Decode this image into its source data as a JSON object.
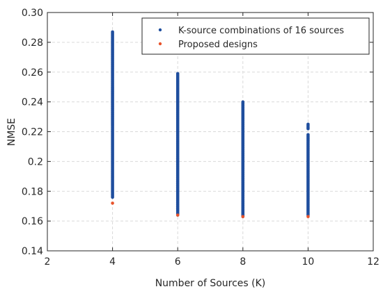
{
  "chart_data": {
    "type": "scatter",
    "title": "",
    "xlabel": "Number of Sources (K)",
    "ylabel": "NMSE",
    "xlim": [
      2,
      12
    ],
    "ylim": [
      0.14,
      0.3
    ],
    "xticks": [
      2,
      4,
      6,
      8,
      10,
      12
    ],
    "xtick_labels": [
      "2",
      "4",
      "6",
      "8",
      "10",
      "12"
    ],
    "yticks": [
      0.14,
      0.16,
      0.18,
      0.2,
      0.22,
      0.24,
      0.26,
      0.28,
      0.3
    ],
    "ytick_labels": [
      "0.14",
      "0.16",
      "0.18",
      "0.2",
      "0.22",
      "0.24",
      "0.26",
      "0.28",
      "0.30"
    ],
    "grid": true,
    "legend_position": "top-right",
    "series": [
      {
        "name": "K-source combinations of 16 sources",
        "color": "#1f4e9e",
        "marker": "dot",
        "point_ranges": [
          {
            "x": 4,
            "y_min": 0.176,
            "y_max": 0.287
          },
          {
            "x": 6,
            "y_min": 0.164,
            "y_max": 0.259
          },
          {
            "x": 8,
            "y_min": 0.163,
            "y_max": 0.24
          },
          {
            "x": 10,
            "y_min": 0.164,
            "y_max": 0.218
          },
          {
            "x": 10,
            "y_min": 0.222,
            "y_max": 0.225
          }
        ]
      },
      {
        "name": "Proposed designs",
        "color": "#e8532b",
        "marker": "dot",
        "points": [
          {
            "x": 4,
            "y": 0.172
          },
          {
            "x": 6,
            "y": 0.164
          },
          {
            "x": 8,
            "y": 0.163
          },
          {
            "x": 10,
            "y": 0.163
          }
        ]
      }
    ]
  }
}
